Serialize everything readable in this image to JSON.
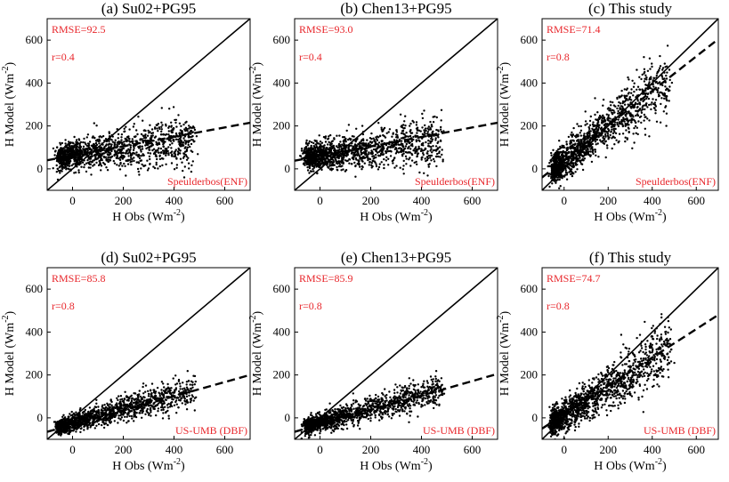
{
  "chart_data": [
    {
      "type": "scatter",
      "title": "(a) Su02+PG95",
      "xlabel": "H Obs (Wm-2)",
      "ylabel": "H Model (Wm-2)",
      "xlim": [
        -100,
        700
      ],
      "ylim": [
        -100,
        700
      ],
      "xticks": [
        0,
        200,
        400,
        600
      ],
      "yticks": [
        0,
        200,
        400,
        600
      ],
      "stats": [
        "RMSE=92.5",
        "r=0.4"
      ],
      "site": "Speulderbos(ENF)",
      "one_to_one_line": [
        [
          -100,
          -100
        ],
        [
          700,
          700
        ]
      ],
      "fit_line": [
        [
          -100,
          40
        ],
        [
          700,
          215
        ]
      ],
      "scatter": {
        "x_range": [
          -50,
          480
        ],
        "y_center": [
          55,
          135
        ],
        "spread": 55
      }
    },
    {
      "type": "scatter",
      "title": "(b) Chen13+PG95",
      "xlabel": "H Obs (Wm-2)",
      "ylabel": "H Model (Wm-2)",
      "xlim": [
        -100,
        700
      ],
      "ylim": [
        -100,
        700
      ],
      "xticks": [
        0,
        200,
        400,
        600
      ],
      "yticks": [
        0,
        200,
        400,
        600
      ],
      "stats": [
        "RMSE=93.0",
        "r=0.4"
      ],
      "site": "Speulderbos(ENF)",
      "one_to_one_line": [
        [
          -100,
          -100
        ],
        [
          700,
          700
        ]
      ],
      "fit_line": [
        [
          -100,
          38
        ],
        [
          700,
          215
        ]
      ],
      "scatter": {
        "x_range": [
          -50,
          480
        ],
        "y_center": [
          55,
          135
        ],
        "spread": 55
      }
    },
    {
      "type": "scatter",
      "title": "(c) This study",
      "xlabel": "H Obs (Wm-2)",
      "ylabel": "H Model (Wm-2)",
      "xlim": [
        -100,
        700
      ],
      "ylim": [
        -100,
        700
      ],
      "xticks": [
        0,
        200,
        400,
        600
      ],
      "yticks": [
        0,
        200,
        400,
        600
      ],
      "stats": [
        "RMSE=71.4",
        "r=0.8"
      ],
      "site": "Speulderbos(ENF)",
      "one_to_one_line": [
        [
          -100,
          -100
        ],
        [
          700,
          700
        ]
      ],
      "fit_line": [
        [
          -100,
          -40
        ],
        [
          700,
          605
        ]
      ],
      "scatter": {
        "x_range": [
          -50,
          480
        ],
        "y_center": [
          0,
          420
        ],
        "spread": 70
      }
    },
    {
      "type": "scatter",
      "title": "(d) Su02+PG95",
      "xlabel": "H Obs (Wm-2)",
      "ylabel": "H Model (Wm-2)",
      "xlim": [
        -100,
        700
      ],
      "ylim": [
        -100,
        700
      ],
      "xticks": [
        0,
        200,
        400,
        600
      ],
      "yticks": [
        0,
        200,
        400,
        600
      ],
      "stats": [
        "RMSE=85.8",
        "r=0.8"
      ],
      "site": "US-UMB (DBF)",
      "one_to_one_line": [
        [
          -100,
          -100
        ],
        [
          700,
          700
        ]
      ],
      "fit_line": [
        [
          -100,
          -65
        ],
        [
          700,
          200
        ]
      ],
      "scatter": {
        "x_range": [
          -50,
          480
        ],
        "y_center": [
          -40,
          130
        ],
        "spread": 35
      }
    },
    {
      "type": "scatter",
      "title": "(e) Chen13+PG95",
      "xlabel": "H Obs (Wm-2)",
      "ylabel": "H Model (Wm-2)",
      "xlim": [
        -100,
        700
      ],
      "ylim": [
        -100,
        700
      ],
      "xticks": [
        0,
        200,
        400,
        600
      ],
      "yticks": [
        0,
        200,
        400,
        600
      ],
      "stats": [
        "RMSE=85.9",
        "r=0.8"
      ],
      "site": "US-UMB (DBF)",
      "one_to_one_line": [
        [
          -100,
          -100
        ],
        [
          700,
          700
        ]
      ],
      "fit_line": [
        [
          -100,
          -65
        ],
        [
          700,
          205
        ]
      ],
      "scatter": {
        "x_range": [
          -50,
          480
        ],
        "y_center": [
          -40,
          135
        ],
        "spread": 35
      }
    },
    {
      "type": "scatter",
      "title": "(f) This study",
      "xlabel": "H Obs (Wm-2)",
      "ylabel": "H Model (Wm-2)",
      "xlim": [
        -100,
        700
      ],
      "ylim": [
        -100,
        700
      ],
      "xticks": [
        0,
        200,
        400,
        600
      ],
      "yticks": [
        0,
        200,
        400,
        600
      ],
      "stats": [
        "RMSE=74.7",
        "r=0.8"
      ],
      "site": "US-UMB (DBF)",
      "one_to_one_line": [
        [
          -100,
          -100
        ],
        [
          700,
          700
        ]
      ],
      "fit_line": [
        [
          -100,
          -50
        ],
        [
          700,
          480
        ]
      ],
      "scatter": {
        "x_range": [
          -50,
          480
        ],
        "y_center": [
          -20,
          320
        ],
        "spread": 65
      }
    }
  ]
}
